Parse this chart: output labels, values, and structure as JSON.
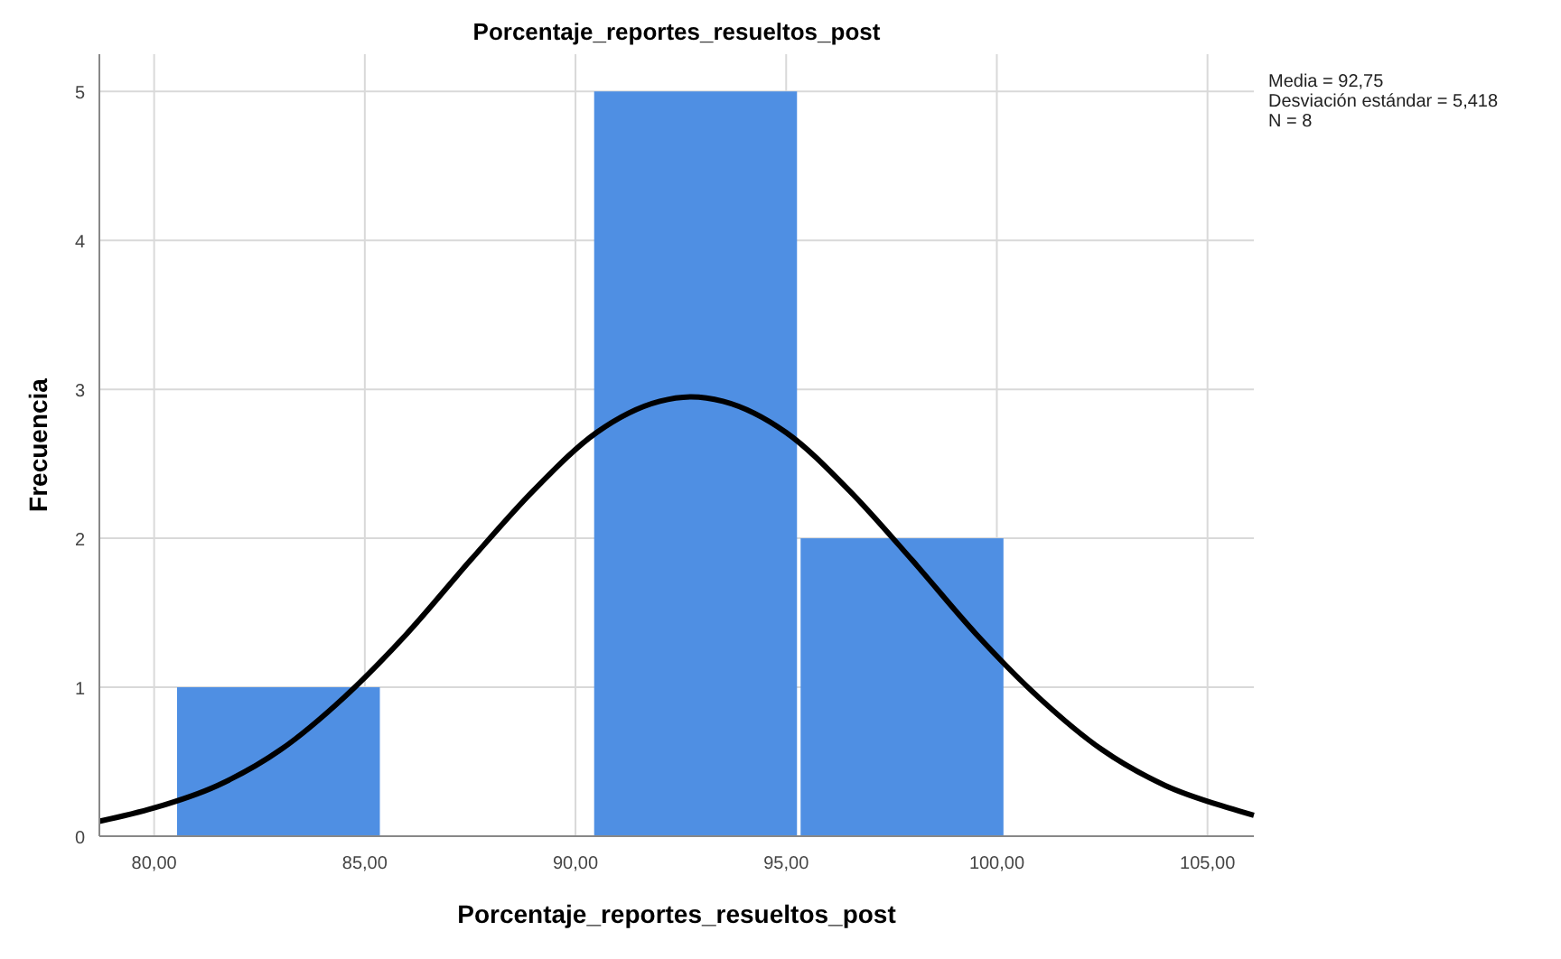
{
  "chart_data": {
    "type": "histogram",
    "title": "Porcentaje_reportes_resueltos_post",
    "xlabel": "Porcentaje_reportes_resueltos_post",
    "ylabel": "Frecuencia",
    "bins": [
      80.5,
      85.4,
      90.4,
      95.3,
      100.2
    ],
    "values": [
      1,
      0,
      5,
      2
    ],
    "color": "#4f8fe3",
    "series": [
      {
        "type": "line",
        "color": "#000000",
        "x": [
          78.7,
          80,
          81.5,
          83,
          84.5,
          86,
          87.5,
          89,
          90.5,
          92,
          92.75,
          93.5,
          95,
          96.5,
          98,
          99.5,
          101,
          102.5,
          104,
          105.5,
          106.1
        ],
        "values": [
          0.1,
          0.19,
          0.34,
          0.58,
          0.93,
          1.36,
          1.85,
          2.32,
          2.71,
          2.92,
          2.95,
          2.92,
          2.71,
          2.32,
          1.85,
          1.36,
          0.93,
          0.58,
          0.34,
          0.19,
          0.14
        ]
      }
    ],
    "xlim": [
      78.7,
      106.1
    ],
    "xticks": [
      {
        "value": 80,
        "label": "80,00"
      },
      {
        "value": 85,
        "label": "85,00"
      },
      {
        "value": 90,
        "label": "90,00"
      },
      {
        "value": 95,
        "label": "95,00"
      },
      {
        "value": 100,
        "label": "100,00"
      },
      {
        "value": 105,
        "label": "105,00"
      }
    ],
    "ylim": [
      0,
      5.25
    ],
    "yticks": [
      0,
      1,
      2,
      3,
      4,
      5
    ],
    "grid": true,
    "annotations": [
      "Media = 92,75",
      "Desviación estándar = 5,418",
      "N = 8"
    ]
  }
}
